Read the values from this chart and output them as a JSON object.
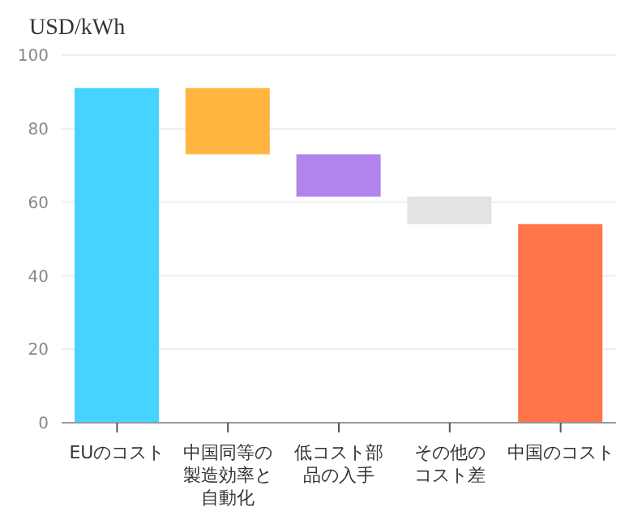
{
  "chart_data": {
    "type": "bar",
    "ylabel": "USD/kWh",
    "categories": [
      "EUのコスト",
      "中国同等の製造効率と自動化",
      "低コスト部品の入手",
      "その他のコスト差",
      "中国のコスト"
    ],
    "values": [
      91,
      18,
      11.5,
      7.5,
      54
    ],
    "base": [
      0,
      73,
      61.5,
      54,
      0
    ],
    "colors": [
      "#45d4ff",
      "#ffb540",
      "#b084ec",
      "#e3e3e3",
      "#ff7448"
    ],
    "ylim": [
      0,
      100
    ],
    "yticks": [
      0,
      20,
      40,
      60,
      80,
      100
    ],
    "grid": "y"
  }
}
